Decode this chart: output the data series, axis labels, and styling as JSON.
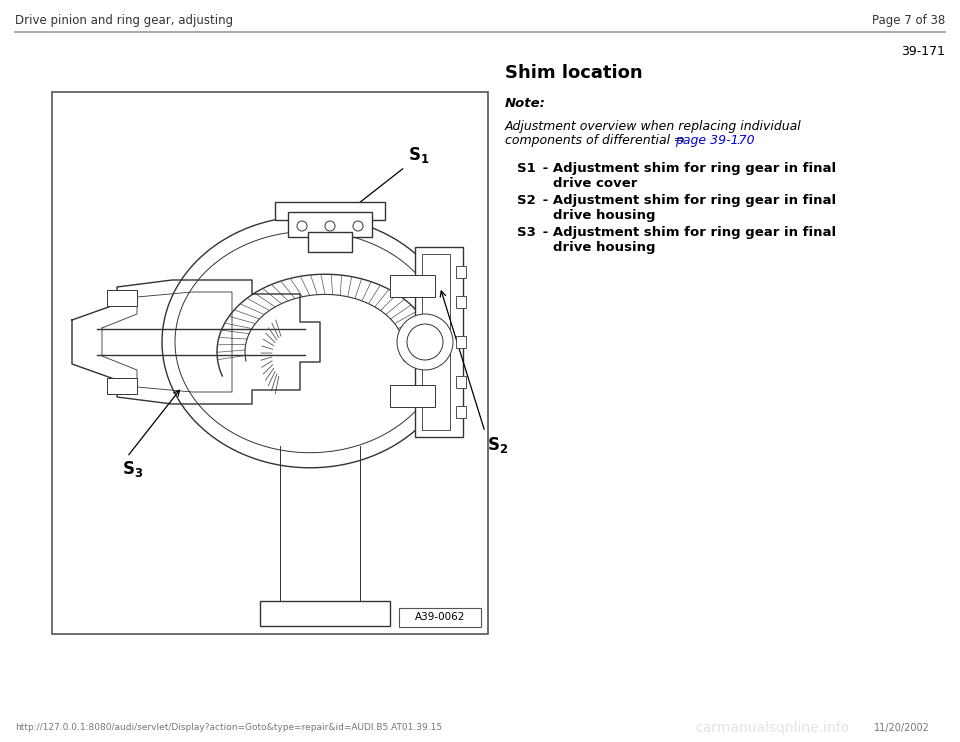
{
  "page_title_left": "Drive pinion and ring gear, adjusting",
  "page_title_right": "Page 7 of 38",
  "page_number": "39-171",
  "section_title": "Shim location",
  "note_label": "Note:",
  "note_link": "page 39-170",
  "items": [
    {
      "label": "S1",
      "line1": " - Adjustment shim for ring gear in final",
      "line2": "   drive cover"
    },
    {
      "label": "S2",
      "line1": " - Adjustment shim for ring gear in final",
      "line2": "   drive housing"
    },
    {
      "label": "S3",
      "line1": " - Adjustment shim for ring gear in final",
      "line2": "   drive housing"
    }
  ],
  "image_caption": "A39-0062",
  "footer_url": "http://127.0.0.1:8080/audi/servlet/Display?action=Goto&type=repair&id=AUDI.B5.AT01.39.15",
  "footer_watermark": "carmanualsqnline.info",
  "footer_date": "11/20/2002",
  "bg_color": "#ffffff",
  "text_color": "#000000",
  "link_color": "#0000dd",
  "line_color": "#888888",
  "draw_color": "#333333"
}
